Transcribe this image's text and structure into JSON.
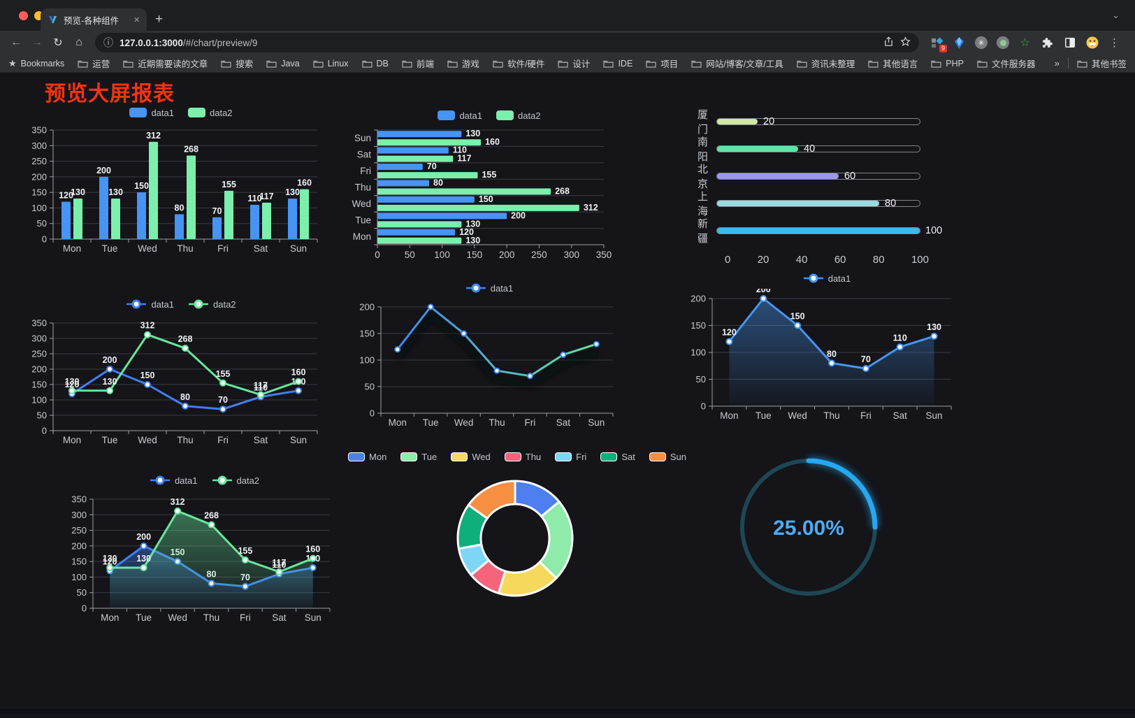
{
  "browser": {
    "traffic_lights": [
      "#ff5f57",
      "#febc2e",
      "#2ac840"
    ],
    "tab": {
      "title": "预览-各种组件",
      "close_label": "×",
      "new_tab_label": "+",
      "chevron": "⌄"
    },
    "url": {
      "host": "127.0.0.1:3000",
      "path": "/#/chart/preview/9"
    },
    "toolbar": {
      "back": "←",
      "forward": "→",
      "reload": "↻",
      "home": "⌂",
      "info": "ⓘ",
      "menu_dots": "⋮"
    },
    "extension_badge": "9"
  },
  "bookmarks": {
    "star_label": "Bookmarks",
    "items": [
      "运营",
      "近期需要读的文章",
      "搜索",
      "Java",
      "Linux",
      "DB",
      "前端",
      "游戏",
      "软件/硬件",
      "设计",
      "IDE",
      "项目",
      "网站/博客/文章/工具",
      "资讯未整理",
      "其他语言",
      "PHP",
      "文件服务器"
    ],
    "overflow": "»",
    "other_label": "其他书签"
  },
  "page": {
    "title": "预览大屏报表",
    "title_color": "#f5330f",
    "background": "#141419"
  },
  "chart_data": [
    {
      "id": "bar-vertical",
      "type": "bar",
      "legend_position": "top",
      "categories": [
        "Mon",
        "Tue",
        "Wed",
        "Thu",
        "Fri",
        "Sat",
        "Sun"
      ],
      "series": [
        {
          "name": "data1",
          "color": "#4694f4",
          "values": [
            120,
            200,
            150,
            80,
            70,
            110,
            130
          ]
        },
        {
          "name": "data2",
          "color": "#7bf0ac",
          "values": [
            130,
            130,
            312,
            268,
            155,
            117,
            160
          ]
        }
      ],
      "ylim": [
        0,
        350
      ],
      "ytick_step": 50,
      "value_labels": true
    },
    {
      "id": "bar-horizontal",
      "type": "bar",
      "orientation": "horizontal",
      "legend_position": "top",
      "categories": [
        "Mon",
        "Tue",
        "Wed",
        "Thu",
        "Fri",
        "Sat",
        "Sun"
      ],
      "series": [
        {
          "name": "data1",
          "color": "#4694f4",
          "values": [
            120,
            200,
            150,
            80,
            70,
            110,
            130
          ]
        },
        {
          "name": "data2",
          "color": "#7bf0ac",
          "values": [
            130,
            130,
            312,
            268,
            155,
            117,
            160
          ]
        }
      ],
      "xlim": [
        0,
        350
      ],
      "xtick_step": 50,
      "value_labels": true
    },
    {
      "id": "city-progress",
      "type": "bar",
      "subtype": "progress",
      "max": 100,
      "axis_ticks": [
        0,
        20,
        40,
        60,
        80,
        100
      ],
      "items": [
        {
          "label": "厦门",
          "value": 20,
          "color": "#cfe6a4"
        },
        {
          "label": "南阳",
          "value": 40,
          "color": "#62e2a5"
        },
        {
          "label": "北京",
          "value": 60,
          "color": "#9a99e8"
        },
        {
          "label": "上海",
          "value": 80,
          "color": "#8ce0df"
        },
        {
          "label": "新疆",
          "value": 100,
          "color": "#3cb9e8"
        }
      ]
    },
    {
      "id": "line-dual",
      "type": "line",
      "legend_position": "top",
      "categories": [
        "Mon",
        "Tue",
        "Wed",
        "Thu",
        "Fri",
        "Sat",
        "Sun"
      ],
      "series": [
        {
          "name": "data1",
          "color": "#3f7ff2",
          "values": [
            120,
            200,
            150,
            80,
            70,
            110,
            130
          ]
        },
        {
          "name": "data2",
          "color": "#68e69b",
          "values": [
            130,
            130,
            312,
            268,
            155,
            117,
            160
          ]
        }
      ],
      "ylim": [
        0,
        350
      ],
      "ytick_step": 50,
      "point_labels": true
    },
    {
      "id": "line-gradient",
      "type": "line",
      "legend_position": "top",
      "categories": [
        "Mon",
        "Tue",
        "Wed",
        "Thu",
        "Fri",
        "Sat",
        "Sun"
      ],
      "series": [
        {
          "name": "data1",
          "color_start": "#3f86f0",
          "color_end": "#62e69b",
          "values": [
            120,
            200,
            150,
            80,
            70,
            110,
            130
          ]
        }
      ],
      "ylim": [
        0,
        200
      ],
      "ytick_step": 50,
      "point_labels": false,
      "shadow": true
    },
    {
      "id": "area-single",
      "type": "area",
      "legend_position": "top",
      "categories": [
        "Mon",
        "Tue",
        "Wed",
        "Thu",
        "Fri",
        "Sat",
        "Sun"
      ],
      "series": [
        {
          "name": "data1",
          "color": "#4596f0",
          "values": [
            120,
            200,
            150,
            80,
            70,
            110,
            130
          ]
        }
      ],
      "ylim": [
        0,
        200
      ],
      "ytick_step": 50,
      "point_labels": true
    },
    {
      "id": "area-dual",
      "type": "area",
      "legend_position": "top",
      "categories": [
        "Mon",
        "Tue",
        "Wed",
        "Thu",
        "Fri",
        "Sat",
        "Sun"
      ],
      "series": [
        {
          "name": "data1",
          "color": "#3f7ff2",
          "values": [
            120,
            200,
            150,
            80,
            70,
            110,
            130
          ]
        },
        {
          "name": "data2",
          "color": "#68e69b",
          "values": [
            130,
            130,
            312,
            268,
            155,
            117,
            160
          ]
        }
      ],
      "ylim": [
        0,
        350
      ],
      "ytick_step": 50,
      "point_labels": true
    },
    {
      "id": "pie-donut",
      "type": "pie",
      "donut": true,
      "legend_position": "top",
      "items": [
        {
          "label": "Mon",
          "value": 120,
          "color": "#4e7ff0"
        },
        {
          "label": "Tue",
          "value": 200,
          "color": "#8eeba9"
        },
        {
          "label": "Wed",
          "value": 150,
          "color": "#f6d95c"
        },
        {
          "label": "Thu",
          "value": 80,
          "color": "#f4657c"
        },
        {
          "label": "Fri",
          "value": 70,
          "color": "#7ed6f6"
        },
        {
          "label": "Sat",
          "value": 110,
          "color": "#0fae7d"
        },
        {
          "label": "Sun",
          "value": 130,
          "color": "#f78f42"
        }
      ]
    },
    {
      "id": "gauge",
      "type": "gauge",
      "value": 25,
      "display": "25.00%",
      "color": "#25a8f0",
      "track_color": "#1d4754",
      "text_color": "#4fabf2"
    }
  ]
}
